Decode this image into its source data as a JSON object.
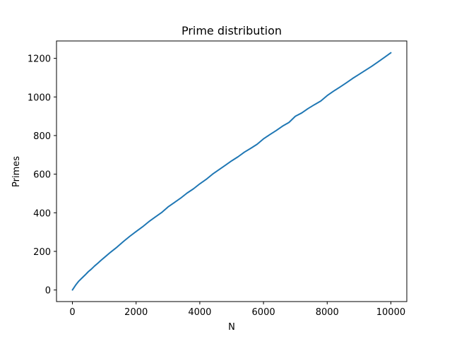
{
  "chart_data": {
    "type": "line",
    "title": "Prime distribution",
    "xlabel": "N",
    "ylabel": "Primes",
    "xlim": [
      -500,
      10500
    ],
    "ylim": [
      -60,
      1290
    ],
    "xticks": [
      0,
      2000,
      4000,
      6000,
      8000,
      10000
    ],
    "yticks": [
      0,
      200,
      400,
      600,
      800,
      1000,
      1200
    ],
    "grid": false,
    "series": [
      {
        "color": "#1f77b4",
        "x": [
          0,
          100,
          200,
          300,
          400,
          500,
          600,
          700,
          800,
          900,
          1000,
          1200,
          1400,
          1600,
          1800,
          2000,
          2200,
          2400,
          2600,
          2800,
          3000,
          3200,
          3400,
          3600,
          3800,
          4000,
          4200,
          4400,
          4600,
          4800,
          5000,
          5200,
          5400,
          5600,
          5800,
          6000,
          6200,
          6400,
          6600,
          6800,
          7000,
          7200,
          7400,
          7600,
          7800,
          8000,
          8200,
          8400,
          8600,
          8800,
          9000,
          9200,
          9400,
          9600,
          9800,
          10000
        ],
        "y": [
          0,
          25,
          46,
          62,
          78,
          95,
          109,
          125,
          139,
          154,
          168,
          196,
          222,
          251,
          278,
          303,
          327,
          354,
          378,
          401,
          430,
          453,
          476,
          502,
          524,
          550,
          573,
          600,
          623,
          646,
          669,
          690,
          714,
          734,
          755,
          783,
          805,
          826,
          849,
          868,
          900,
          917,
          940,
          960,
          979,
          1007,
          1030,
          1051,
          1073,
          1096,
          1117,
          1138,
          1159,
          1182,
          1205,
          1229
        ]
      }
    ]
  }
}
